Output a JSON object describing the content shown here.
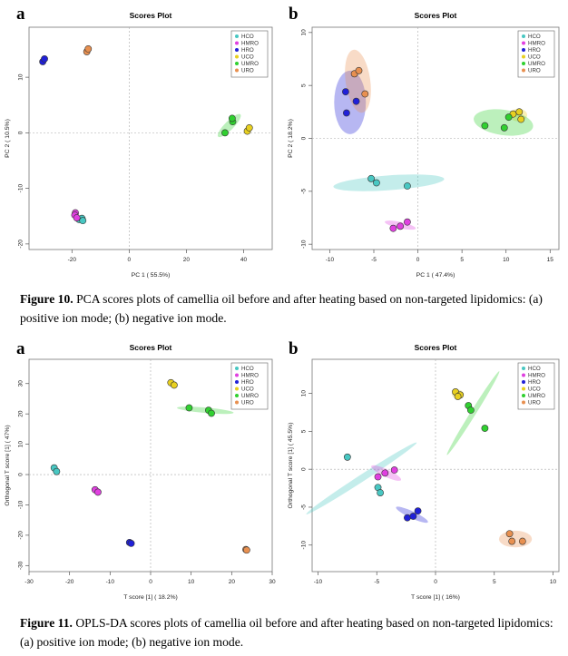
{
  "figure10": {
    "caption_label": "Figure 10.",
    "caption_text": "PCA scores plots of camellia oil before and after heating based on non-targeted lipidomics: (a) positive ion mode; (b) negative ion mode."
  },
  "figure11": {
    "caption_label": "Figure 11.",
    "caption_text": "OPLS-DA scores plots of camellia oil before and after heating based on non-targeted lipidomics: (a) positive ion mode; (b) negative ion mode."
  },
  "colors": {
    "HCO": "#48c7c2",
    "HMRO": "#e040e0",
    "HRO": "#2020d8",
    "UCO": "#e8d020",
    "UMRO": "#30d030",
    "URO": "#e89050"
  },
  "chart_data": [
    {
      "id": "fig10a",
      "panel_label": "a",
      "type": "scatter",
      "title": "Scores Plot",
      "xlabel": "PC 1 ( 55.5%)",
      "ylabel": "PC 2 ( 10.5%)",
      "xlim": [
        -35,
        50
      ],
      "ylim": [
        -21,
        19
      ],
      "xticks": [
        -20,
        0,
        20,
        40
      ],
      "yticks": [
        -20,
        -10,
        0,
        10
      ],
      "legend": {
        "position": "top-right",
        "entries": [
          "HCO",
          "HMRO",
          "HRO",
          "UCO",
          "UMRO",
          "URO"
        ]
      },
      "series": [
        {
          "name": "HCO",
          "points": [
            [
              -17.5,
              -15.6
            ],
            [
              -16.5,
              -15.4
            ],
            [
              -16.2,
              -15.8
            ]
          ]
        },
        {
          "name": "HMRO",
          "points": [
            [
              -18.8,
              -14.4
            ],
            [
              -19.0,
              -14.8
            ],
            [
              -18.3,
              -15.3
            ]
          ]
        },
        {
          "name": "HRO",
          "points": [
            [
              -30.2,
              12.8
            ],
            [
              -29.6,
              13.3
            ]
          ]
        },
        {
          "name": "UCO",
          "points": [
            [
              41.3,
              0.3
            ],
            [
              42.0,
              0.9
            ]
          ]
        },
        {
          "name": "UMRO",
          "points": [
            [
              33.5,
              0.0
            ],
            [
              36.2,
              2.0
            ],
            [
              36.0,
              2.6
            ]
          ]
        },
        {
          "name": "URO",
          "points": [
            [
              -14.8,
              14.6
            ],
            [
              -14.3,
              15.1
            ]
          ]
        }
      ],
      "ellipses": [
        {
          "series": "HCO",
          "cx": -17.2,
          "cy": -15.5,
          "rx": 1.8,
          "ry": 0.5,
          "rot": 0
        },
        {
          "series": "HMRO",
          "cx": -18.7,
          "cy": -14.8,
          "rx": 0.7,
          "ry": 0.9,
          "rot": 0
        },
        {
          "series": "HRO",
          "cx": -29.9,
          "cy": 13.0,
          "rx": 0.8,
          "ry": 0.8,
          "rot": 0
        },
        {
          "series": "UCO",
          "cx": 41.6,
          "cy": 0.6,
          "rx": 1.2,
          "ry": 0.6,
          "rot": 30
        },
        {
          "series": "UMRO",
          "cx": 35.0,
          "cy": 1.3,
          "rx": 5.5,
          "ry": 0.8,
          "rot": 45
        },
        {
          "series": "URO",
          "cx": -14.5,
          "cy": 14.8,
          "rx": 0.9,
          "ry": 0.7,
          "rot": 0
        }
      ]
    },
    {
      "id": "fig10b",
      "panel_label": "b",
      "type": "scatter",
      "title": "Scores Plot",
      "xlabel": "PC 1 ( 47.4%)",
      "ylabel": "PC 2 ( 18.2%)",
      "xlim": [
        -12,
        16
      ],
      "ylim": [
        -10.5,
        10.5
      ],
      "xticks": [
        -10,
        -5,
        0,
        5,
        10,
        15
      ],
      "yticks": [
        -10,
        -5,
        0,
        5,
        10
      ],
      "legend": {
        "position": "top-right",
        "entries": [
          "HCO",
          "HMRO",
          "HRO",
          "UCO",
          "UMRO",
          "URO"
        ]
      },
      "series": [
        {
          "name": "HCO",
          "points": [
            [
              -5.3,
              -3.8
            ],
            [
              -4.7,
              -4.2
            ],
            [
              -1.2,
              -4.5
            ]
          ]
        },
        {
          "name": "HMRO",
          "points": [
            [
              -2.8,
              -8.5
            ],
            [
              -2.0,
              -8.3
            ],
            [
              -1.2,
              -7.9
            ]
          ]
        },
        {
          "name": "HRO",
          "points": [
            [
              -8.2,
              4.4
            ],
            [
              -7.0,
              3.5
            ],
            [
              -8.1,
              2.4
            ]
          ]
        },
        {
          "name": "UCO",
          "points": [
            [
              10.8,
              2.3
            ],
            [
              11.5,
              2.5
            ],
            [
              11.7,
              1.8
            ]
          ]
        },
        {
          "name": "UMRO",
          "points": [
            [
              7.6,
              1.2
            ],
            [
              9.8,
              1.0
            ],
            [
              10.3,
              2.0
            ]
          ]
        },
        {
          "name": "URO",
          "points": [
            [
              -7.2,
              6.1
            ],
            [
              -6.7,
              6.4
            ],
            [
              -6.0,
              4.2
            ]
          ]
        }
      ],
      "ellipses": [
        {
          "series": "HCO",
          "cx": -3.3,
          "cy": -4.2,
          "rx": 6.3,
          "ry": 0.7,
          "rot": 4
        },
        {
          "series": "HMRO",
          "cx": -2.0,
          "cy": -8.2,
          "rx": 1.8,
          "ry": 0.3,
          "rot": -12
        },
        {
          "series": "HRO",
          "cx": -7.7,
          "cy": 3.4,
          "rx": 1.8,
          "ry": 3.0,
          "rot": 0
        },
        {
          "series": "UCO",
          "cx": 11.4,
          "cy": 2.2,
          "rx": 1.0,
          "ry": 0.6,
          "rot": 0
        },
        {
          "series": "UMRO",
          "cx": 9.7,
          "cy": 1.5,
          "rx": 3.4,
          "ry": 1.2,
          "rot": -8
        },
        {
          "series": "URO",
          "cx": -6.8,
          "cy": 5.4,
          "rx": 1.4,
          "ry": 3.0,
          "rot": 8
        }
      ]
    },
    {
      "id": "fig11a",
      "panel_label": "a",
      "type": "scatter",
      "title": "Scores Plot",
      "xlabel": "T score [1] ( 18.2%)",
      "ylabel": "Orthogonal T score [1] ( 47%)",
      "xlim": [
        -30,
        30
      ],
      "ylim": [
        -32,
        38
      ],
      "xticks": [
        -30,
        -20,
        -10,
        0,
        10,
        20,
        30
      ],
      "yticks": [
        -30,
        -20,
        -10,
        0,
        10,
        20,
        30
      ],
      "legend": {
        "position": "top-right",
        "entries": [
          "HCO",
          "HMRO",
          "HRO",
          "UCO",
          "UMRO",
          "URO"
        ]
      },
      "series": [
        {
          "name": "HCO",
          "points": [
            [
              -23.8,
              2.2
            ],
            [
              -23.2,
              1.0
            ]
          ]
        },
        {
          "name": "HMRO",
          "points": [
            [
              -13.7,
              -5.0
            ],
            [
              -13.0,
              -5.8
            ]
          ]
        },
        {
          "name": "HRO",
          "points": [
            [
              -5.2,
              -22.4
            ],
            [
              -4.8,
              -22.7
            ]
          ]
        },
        {
          "name": "UCO",
          "points": [
            [
              5.0,
              30.3
            ],
            [
              5.8,
              29.5
            ]
          ]
        },
        {
          "name": "UMRO",
          "points": [
            [
              9.5,
              22.0
            ],
            [
              14.3,
              21.2
            ],
            [
              15.0,
              20.2
            ]
          ]
        },
        {
          "name": "URO",
          "points": [
            [
              23.5,
              -24.7
            ],
            [
              23.7,
              -24.9
            ]
          ]
        }
      ],
      "ellipses": [
        {
          "series": "HCO",
          "cx": -23.5,
          "cy": 1.6,
          "rx": 0.7,
          "ry": 1.3,
          "rot": 0
        },
        {
          "series": "HMRO",
          "cx": -13.3,
          "cy": -5.4,
          "rx": 0.7,
          "ry": 1.0,
          "rot": 0
        },
        {
          "series": "HRO",
          "cx": -5.0,
          "cy": -22.5,
          "rx": 0.8,
          "ry": 0.7,
          "rot": 0
        },
        {
          "series": "UCO",
          "cx": 5.4,
          "cy": 29.9,
          "rx": 0.8,
          "ry": 1.0,
          "rot": 0
        },
        {
          "series": "UMRO",
          "cx": 13.5,
          "cy": 21.2,
          "rx": 7.0,
          "ry": 0.9,
          "rot": -5
        },
        {
          "series": "URO",
          "cx": 23.6,
          "cy": -24.8,
          "rx": 0.8,
          "ry": 0.8,
          "rot": 0
        }
      ]
    },
    {
      "id": "fig11b",
      "panel_label": "b",
      "type": "scatter",
      "title": "Scores Plot",
      "xlabel": "T score [1] ( 16%)",
      "ylabel": "Orthogonal T score [1] ( 45.5%)",
      "xlim": [
        -10.5,
        10.5
      ],
      "ylim": [
        -13.5,
        14.5
      ],
      "xticks": [
        -10,
        -5,
        0,
        5,
        10
      ],
      "yticks": [
        -10,
        -5,
        0,
        5,
        10
      ],
      "legend": {
        "position": "top-right",
        "entries": [
          "HCO",
          "HMRO",
          "HRO",
          "UCO",
          "UMRO",
          "URO"
        ]
      },
      "series": [
        {
          "name": "HCO",
          "points": [
            [
              -7.5,
              1.6
            ],
            [
              -4.9,
              -2.4
            ],
            [
              -4.7,
              -3.1
            ]
          ]
        },
        {
          "name": "HMRO",
          "points": [
            [
              -4.9,
              -1.0
            ],
            [
              -4.3,
              -0.5
            ],
            [
              -3.5,
              -0.1
            ]
          ]
        },
        {
          "name": "HRO",
          "points": [
            [
              -2.4,
              -6.4
            ],
            [
              -1.9,
              -6.2
            ],
            [
              -1.5,
              -5.5
            ]
          ]
        },
        {
          "name": "UCO",
          "points": [
            [
              1.7,
              10.2
            ],
            [
              2.1,
              9.8
            ],
            [
              1.9,
              9.6
            ]
          ]
        },
        {
          "name": "UMRO",
          "points": [
            [
              2.8,
              8.4
            ],
            [
              3.0,
              7.8
            ],
            [
              4.2,
              5.4
            ]
          ]
        },
        {
          "name": "URO",
          "points": [
            [
              6.3,
              -8.5
            ],
            [
              6.5,
              -9.5
            ],
            [
              7.4,
              -9.5
            ]
          ]
        }
      ],
      "ellipses": [
        {
          "series": "HCO",
          "cx": -6.3,
          "cy": -1.2,
          "rx": 5.6,
          "ry": 0.45,
          "rot": 33
        },
        {
          "series": "HMRO",
          "cx": -4.2,
          "cy": -0.5,
          "rx": 1.4,
          "ry": 0.5,
          "rot": -25
        },
        {
          "series": "HRO",
          "cx": -2.0,
          "cy": -6.0,
          "rx": 1.5,
          "ry": 0.45,
          "rot": -25
        },
        {
          "series": "UCO",
          "cx": 1.9,
          "cy": 9.9,
          "rx": 0.5,
          "ry": 0.6,
          "rot": 0
        },
        {
          "series": "UMRO",
          "cx": 3.2,
          "cy": 7.4,
          "rx": 4.2,
          "ry": 0.35,
          "rot": 58
        },
        {
          "series": "URO",
          "cx": 6.8,
          "cy": -9.2,
          "rx": 1.4,
          "ry": 1.1,
          "rot": 0
        }
      ]
    }
  ]
}
